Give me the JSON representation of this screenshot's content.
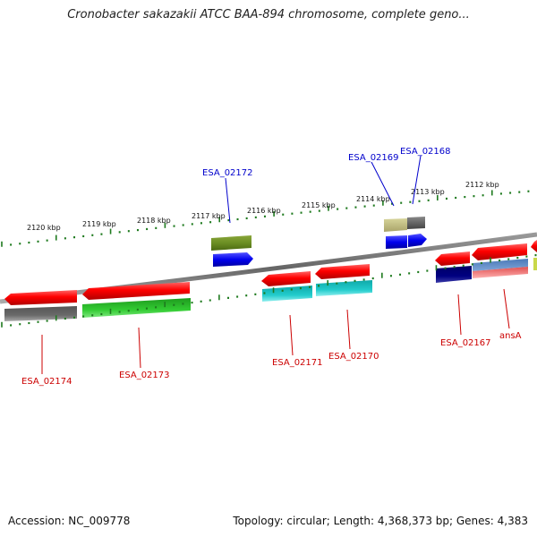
{
  "title": "Cronobacter sakazakii ATCC BAA-894 chromosome, complete geno...",
  "ticks": [
    "2120 kbp",
    "2119 kbp",
    "2118 kbp",
    "2117 kbp",
    "2116 kbp",
    "2115 kbp",
    "2114 kbp",
    "2113 kbp",
    "2112 kbp"
  ],
  "genes_top": [
    {
      "label": "ESA_02172",
      "color": "#0000cc"
    },
    {
      "label": "ESA_02169",
      "color": "#0000cc"
    },
    {
      "label": "ESA_02168",
      "color": "#0000cc"
    }
  ],
  "genes_bottom": [
    {
      "label": "ESA_02174",
      "color": "#cc0000"
    },
    {
      "label": "ESA_02173",
      "color": "#cc0000"
    },
    {
      "label": "ESA_02171",
      "color": "#cc0000"
    },
    {
      "label": "ESA_02170",
      "color": "#cc0000"
    },
    {
      "label": "ESA_02167",
      "color": "#cc0000"
    },
    {
      "label": "ansA",
      "color": "#cc0000"
    }
  ],
  "footer": {
    "accession": "Accession: NC_009778",
    "summary": "Topology: circular; Length: 4,368,373 bp; Genes: 4,383"
  },
  "colors": {
    "cds_red": "#ff0000",
    "backbone": "#777777",
    "top_strand_blue": "#0000ff",
    "cyan_feature": "#11cccc",
    "green_feature": "#22bb22",
    "olive_feature": "#6b8e23",
    "navy_feature": "#000080",
    "gray_feature": "#666666"
  }
}
